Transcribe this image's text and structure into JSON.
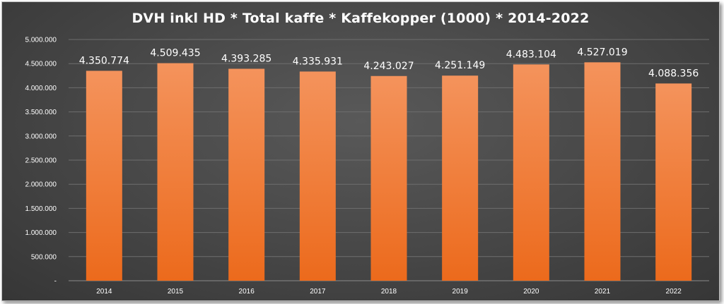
{
  "chart_data": {
    "type": "bar",
    "title": "DVH inkl HD * Total kaffe * Kaffekopper (1000) * 2014-2022",
    "xlabel": "",
    "ylabel": "",
    "categories": [
      "2014",
      "2015",
      "2016",
      "2017",
      "2018",
      "2019",
      "2020",
      "2021",
      "2022"
    ],
    "values": [
      4350774,
      4509435,
      4393285,
      4335931,
      4243027,
      4251149,
      4483104,
      4527019,
      4088356
    ],
    "data_labels": [
      "4.350.774",
      "4.509.435",
      "4.393.285",
      "4.335.931",
      "4.243.027",
      "4.251.149",
      "4.483.104",
      "4.527.019",
      "4.088.356"
    ],
    "ylim": [
      0,
      5000000
    ],
    "y_ticks": [
      0,
      500000,
      1000000,
      1500000,
      2000000,
      2500000,
      3000000,
      3500000,
      4000000,
      4500000,
      5000000
    ],
    "y_tick_labels": [
      "-",
      "500.000",
      "1.000.000",
      "1.500.000",
      "2.000.000",
      "2.500.000",
      "3.000.000",
      "3.500.000",
      "4.000.000",
      "4.500.000",
      "5.000.000"
    ],
    "grid": true,
    "legend": "none",
    "colors": {
      "bar_top": "#f4935c",
      "bar_bottom": "#ec6a1c",
      "gridline": "#6e6e6e",
      "axis": "#8a8a8a",
      "text": "#ffffff"
    }
  }
}
